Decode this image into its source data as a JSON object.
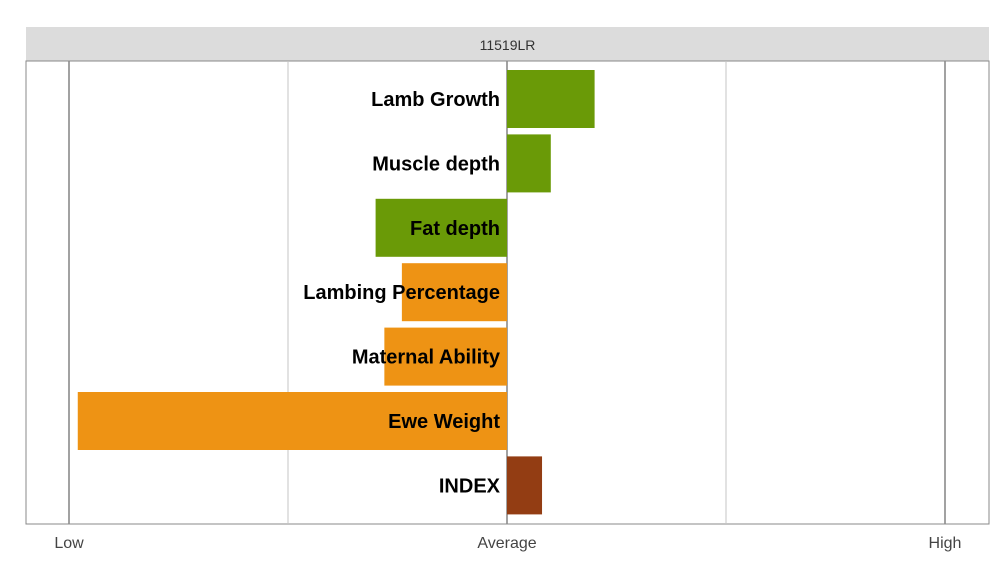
{
  "chart_data": {
    "type": "bar",
    "title": "11519LR",
    "x_tick_labels": [
      "Low",
      "Average",
      "High"
    ],
    "xlim": [
      -1,
      1
    ],
    "categories": [
      "Lamb Growth",
      "Muscle depth",
      "Fat depth",
      "Lambing Percentage",
      "Maternal Ability",
      "Ewe Weight",
      "INDEX"
    ],
    "values": [
      0.2,
      0.1,
      -0.3,
      -0.24,
      -0.28,
      -0.98,
      0.08
    ],
    "colors": [
      "#6a9a07",
      "#6a9a07",
      "#6a9a07",
      "#ee9314",
      "#ee9314",
      "#ee9314",
      "#933d13"
    ],
    "grid": true
  }
}
